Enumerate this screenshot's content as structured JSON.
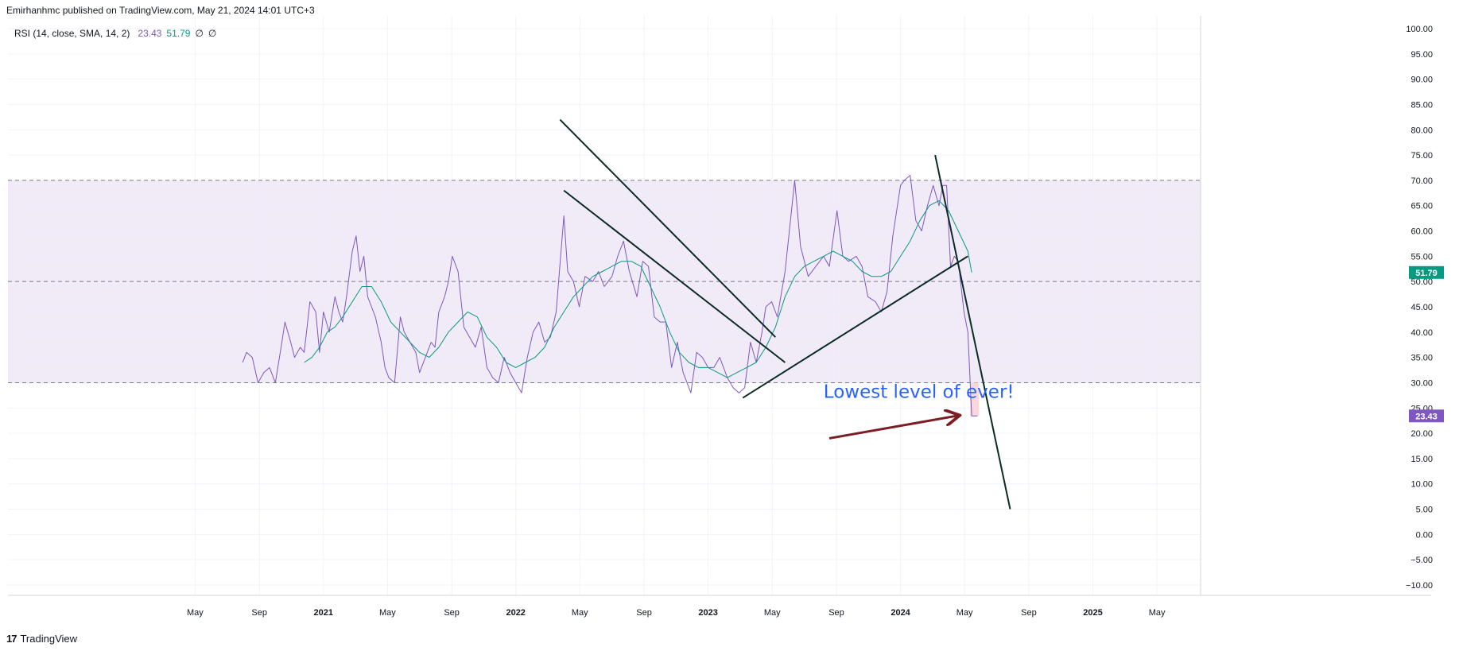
{
  "header": {
    "published": "Emirhanhmc published on TradingView.com, May 21, 2024 14:01 UTC+3"
  },
  "indicator": {
    "name": "RSI (14, close, SMA, 14, 2)",
    "rsi_value": "23.43",
    "sma_value": "51.79",
    "na1": "∅",
    "na2": "∅"
  },
  "annotation": {
    "text": "Lowest level of ever!"
  },
  "footer": {
    "brand": "TradingView",
    "logo": "17"
  },
  "colors": {
    "rsi_line": "#7e57c2",
    "sma_line": "#089981",
    "band_fill": "#ede7f6",
    "trendline": "#0d2b26",
    "arrow": "#7b1d23",
    "annotation_text": "#2962ff",
    "rsi_badge": "#7e57c2",
    "sma_badge": "#089981"
  },
  "chart_data": {
    "type": "line",
    "title": "",
    "xlabel": "",
    "ylabel": "",
    "ylim": [
      -10,
      100
    ],
    "y_ticks": [
      "100.00",
      "95.00",
      "90.00",
      "85.00",
      "80.00",
      "75.00",
      "70.00",
      "65.00",
      "60.00",
      "55.00",
      "50.00",
      "45.00",
      "40.00",
      "35.00",
      "30.00",
      "25.00",
      "20.00",
      "15.00",
      "10.00",
      "5.00",
      "0.00",
      "−5.00",
      "−10.00"
    ],
    "x_ticks": [
      {
        "label": "May",
        "t": 2020.333,
        "bold": false
      },
      {
        "label": "Sep",
        "t": 2020.667,
        "bold": false
      },
      {
        "label": "2021",
        "t": 2021.0,
        "bold": true
      },
      {
        "label": "May",
        "t": 2021.333,
        "bold": false
      },
      {
        "label": "Sep",
        "t": 2021.667,
        "bold": false
      },
      {
        "label": "2022",
        "t": 2022.0,
        "bold": true
      },
      {
        "label": "May",
        "t": 2022.333,
        "bold": false
      },
      {
        "label": "Sep",
        "t": 2022.667,
        "bold": false
      },
      {
        "label": "2023",
        "t": 2023.0,
        "bold": true
      },
      {
        "label": "May",
        "t": 2023.333,
        "bold": false
      },
      {
        "label": "Sep",
        "t": 2023.667,
        "bold": false
      },
      {
        "label": "2024",
        "t": 2024.0,
        "bold": true
      },
      {
        "label": "May",
        "t": 2024.333,
        "bold": false
      },
      {
        "label": "Sep",
        "t": 2024.667,
        "bold": false
      },
      {
        "label": "2025",
        "t": 2025.0,
        "bold": true
      },
      {
        "label": "May",
        "t": 2025.333,
        "bold": false
      }
    ],
    "x_range": [
      2019.36,
      2025.56
    ],
    "bands": {
      "upper": 70,
      "middle": 50,
      "lower": 30
    },
    "series": [
      {
        "name": "RSI",
        "points": [
          [
            2020.58,
            34
          ],
          [
            2020.6,
            36
          ],
          [
            2020.63,
            35
          ],
          [
            2020.66,
            30
          ],
          [
            2020.69,
            32
          ],
          [
            2020.72,
            33
          ],
          [
            2020.75,
            30
          ],
          [
            2020.78,
            37
          ],
          [
            2020.8,
            42
          ],
          [
            2020.83,
            38
          ],
          [
            2020.85,
            35
          ],
          [
            2020.88,
            37
          ],
          [
            2020.9,
            36
          ],
          [
            2020.93,
            46
          ],
          [
            2020.96,
            44
          ],
          [
            2020.98,
            36
          ],
          [
            2021.0,
            44
          ],
          [
            2021.03,
            40
          ],
          [
            2021.06,
            47
          ],
          [
            2021.08,
            44
          ],
          [
            2021.1,
            42
          ],
          [
            2021.12,
            47
          ],
          [
            2021.15,
            56
          ],
          [
            2021.17,
            59
          ],
          [
            2021.19,
            52
          ],
          [
            2021.21,
            55
          ],
          [
            2021.23,
            47
          ],
          [
            2021.25,
            45
          ],
          [
            2021.27,
            43
          ],
          [
            2021.3,
            38
          ],
          [
            2021.32,
            33
          ],
          [
            2021.34,
            31
          ],
          [
            2021.37,
            30
          ],
          [
            2021.4,
            43
          ],
          [
            2021.42,
            40
          ],
          [
            2021.45,
            38
          ],
          [
            2021.48,
            36
          ],
          [
            2021.5,
            32
          ],
          [
            2021.53,
            35
          ],
          [
            2021.56,
            38
          ],
          [
            2021.58,
            37
          ],
          [
            2021.6,
            44
          ],
          [
            2021.63,
            47
          ],
          [
            2021.65,
            50
          ],
          [
            2021.67,
            55
          ],
          [
            2021.7,
            52
          ],
          [
            2021.73,
            41
          ],
          [
            2021.76,
            39
          ],
          [
            2021.79,
            37
          ],
          [
            2021.82,
            41
          ],
          [
            2021.85,
            33
          ],
          [
            2021.88,
            31
          ],
          [
            2021.91,
            30
          ],
          [
            2021.94,
            35
          ],
          [
            2021.97,
            32
          ],
          [
            2022.0,
            30
          ],
          [
            2022.03,
            28
          ],
          [
            2022.06,
            35
          ],
          [
            2022.09,
            40
          ],
          [
            2022.12,
            42
          ],
          [
            2022.15,
            38
          ],
          [
            2022.18,
            39
          ],
          [
            2022.21,
            44
          ],
          [
            2022.25,
            63
          ],
          [
            2022.27,
            52
          ],
          [
            2022.3,
            50
          ],
          [
            2022.33,
            45
          ],
          [
            2022.36,
            51
          ],
          [
            2022.4,
            50
          ],
          [
            2022.43,
            52
          ],
          [
            2022.46,
            49
          ],
          [
            2022.5,
            51
          ],
          [
            2022.53,
            55
          ],
          [
            2022.56,
            58
          ],
          [
            2022.59,
            52
          ],
          [
            2022.63,
            47
          ],
          [
            2022.66,
            54
          ],
          [
            2022.69,
            53
          ],
          [
            2022.72,
            43
          ],
          [
            2022.75,
            42
          ],
          [
            2022.78,
            42
          ],
          [
            2022.81,
            33
          ],
          [
            2022.84,
            38
          ],
          [
            2022.87,
            32
          ],
          [
            2022.91,
            28
          ],
          [
            2022.94,
            36
          ],
          [
            2022.97,
            35
          ],
          [
            2023.0,
            33
          ],
          [
            2023.03,
            33
          ],
          [
            2023.06,
            35
          ],
          [
            2023.1,
            31
          ],
          [
            2023.13,
            29
          ],
          [
            2023.16,
            28
          ],
          [
            2023.19,
            29
          ],
          [
            2023.22,
            38
          ],
          [
            2023.25,
            34
          ],
          [
            2023.28,
            40
          ],
          [
            2023.3,
            45
          ],
          [
            2023.33,
            46
          ],
          [
            2023.36,
            43
          ],
          [
            2023.4,
            52
          ],
          [
            2023.45,
            70
          ],
          [
            2023.48,
            57
          ],
          [
            2023.52,
            51
          ],
          [
            2023.56,
            53
          ],
          [
            2023.6,
            55
          ],
          [
            2023.63,
            53
          ],
          [
            2023.67,
            64
          ],
          [
            2023.7,
            55
          ],
          [
            2023.73,
            54
          ],
          [
            2023.77,
            55
          ],
          [
            2023.8,
            53
          ],
          [
            2023.83,
            47
          ],
          [
            2023.87,
            46
          ],
          [
            2023.9,
            44
          ],
          [
            2023.93,
            48
          ],
          [
            2023.96,
            59
          ],
          [
            2024.0,
            69
          ],
          [
            2024.02,
            70
          ],
          [
            2024.05,
            71
          ],
          [
            2024.08,
            62
          ],
          [
            2024.11,
            60
          ],
          [
            2024.14,
            65
          ],
          [
            2024.17,
            69
          ],
          [
            2024.2,
            65
          ],
          [
            2024.22,
            69
          ],
          [
            2024.24,
            69
          ],
          [
            2024.26,
            53
          ],
          [
            2024.28,
            55
          ],
          [
            2024.3,
            54
          ],
          [
            2024.33,
            44
          ],
          [
            2024.35,
            40
          ],
          [
            2024.37,
            23.43
          ],
          [
            2024.4,
            23.43
          ]
        ]
      },
      {
        "name": "SMA",
        "points": [
          [
            2020.9,
            34
          ],
          [
            2020.94,
            35
          ],
          [
            2020.98,
            37
          ],
          [
            2021.02,
            40
          ],
          [
            2021.06,
            41
          ],
          [
            2021.1,
            43
          ],
          [
            2021.15,
            46
          ],
          [
            2021.2,
            49
          ],
          [
            2021.25,
            49
          ],
          [
            2021.3,
            46
          ],
          [
            2021.35,
            42
          ],
          [
            2021.4,
            40
          ],
          [
            2021.45,
            38
          ],
          [
            2021.5,
            36
          ],
          [
            2021.55,
            35
          ],
          [
            2021.6,
            37
          ],
          [
            2021.65,
            40
          ],
          [
            2021.7,
            42
          ],
          [
            2021.75,
            44
          ],
          [
            2021.8,
            43
          ],
          [
            2021.85,
            39
          ],
          [
            2021.9,
            37
          ],
          [
            2021.95,
            34
          ],
          [
            2022.0,
            33
          ],
          [
            2022.05,
            34
          ],
          [
            2022.1,
            35
          ],
          [
            2022.15,
            37
          ],
          [
            2022.2,
            41
          ],
          [
            2022.25,
            44
          ],
          [
            2022.3,
            47
          ],
          [
            2022.35,
            49
          ],
          [
            2022.4,
            51
          ],
          [
            2022.45,
            52
          ],
          [
            2022.5,
            53
          ],
          [
            2022.55,
            54
          ],
          [
            2022.6,
            54
          ],
          [
            2022.65,
            53
          ],
          [
            2022.7,
            49
          ],
          [
            2022.75,
            45
          ],
          [
            2022.8,
            40
          ],
          [
            2022.85,
            36
          ],
          [
            2022.9,
            34
          ],
          [
            2022.95,
            33
          ],
          [
            2023.0,
            33
          ],
          [
            2023.05,
            32
          ],
          [
            2023.1,
            31
          ],
          [
            2023.15,
            32
          ],
          [
            2023.2,
            33
          ],
          [
            2023.25,
            34
          ],
          [
            2023.3,
            37
          ],
          [
            2023.35,
            41
          ],
          [
            2023.4,
            47
          ],
          [
            2023.45,
            51
          ],
          [
            2023.5,
            53
          ],
          [
            2023.55,
            54
          ],
          [
            2023.6,
            55
          ],
          [
            2023.65,
            56
          ],
          [
            2023.7,
            55
          ],
          [
            2023.75,
            54
          ],
          [
            2023.8,
            52
          ],
          [
            2023.85,
            51
          ],
          [
            2023.9,
            51
          ],
          [
            2023.95,
            52
          ],
          [
            2024.0,
            55
          ],
          [
            2024.05,
            58
          ],
          [
            2024.1,
            62
          ],
          [
            2024.15,
            65
          ],
          [
            2024.2,
            66
          ],
          [
            2024.25,
            64
          ],
          [
            2024.3,
            60
          ],
          [
            2024.35,
            56
          ],
          [
            2024.37,
            51.79
          ]
        ]
      }
    ],
    "drawings": [
      {
        "kind": "trendline",
        "from": [
          2022.23,
          82
        ],
        "to": [
          2023.35,
          39
        ]
      },
      {
        "kind": "trendline",
        "from": [
          2022.25,
          68
        ],
        "to": [
          2023.4,
          34
        ]
      },
      {
        "kind": "trendline",
        "from": [
          2023.18,
          27
        ],
        "to": [
          2024.35,
          55
        ]
      },
      {
        "kind": "trendline",
        "from": [
          2024.18,
          75
        ],
        "to": [
          2024.57,
          5
        ]
      },
      {
        "kind": "arrow",
        "from": [
          2023.63,
          19
        ],
        "to": [
          2024.3,
          23.5
        ]
      }
    ],
    "annotation_anchor": [
      2023.6,
      27
    ],
    "last_values": {
      "rsi": 23.43,
      "sma": 51.79
    }
  }
}
